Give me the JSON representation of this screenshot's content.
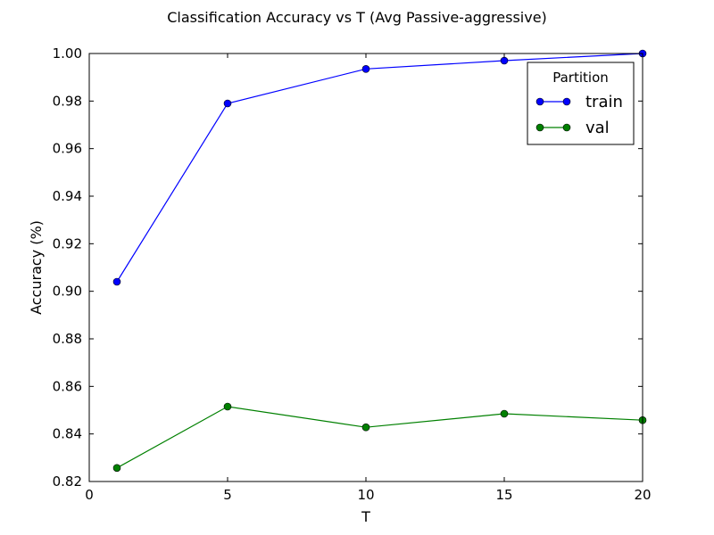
{
  "chart_data": {
    "type": "line",
    "title": "Classification Accuracy vs T (Avg Passive-aggressive)",
    "xlabel": "T",
    "ylabel": "Accuracy (%)",
    "xlim": [
      0,
      20
    ],
    "ylim": [
      0.82,
      1.0
    ],
    "xticks": [
      0,
      5,
      10,
      15,
      20
    ],
    "yticks": [
      0.82,
      0.84,
      0.86,
      0.88,
      0.9,
      0.92,
      0.94,
      0.96,
      0.98,
      1.0
    ],
    "xtick_labels": [
      "0",
      "5",
      "10",
      "15",
      "20"
    ],
    "ytick_labels": [
      "0.82",
      "0.84",
      "0.86",
      "0.88",
      "0.90",
      "0.92",
      "0.94",
      "0.96",
      "0.98",
      "1.00"
    ],
    "grid": false,
    "legend": {
      "title": "Partition",
      "placement": "top-right"
    },
    "x": [
      1,
      5,
      10,
      15,
      20
    ],
    "series": [
      {
        "name": "train",
        "color": "#0000ff",
        "values": [
          0.904,
          0.979,
          0.9935,
          0.997,
          1.0
        ]
      },
      {
        "name": "val",
        "color": "#008000",
        "values": [
          0.8257,
          0.8515,
          0.8428,
          0.8485,
          0.8458
        ]
      }
    ]
  }
}
